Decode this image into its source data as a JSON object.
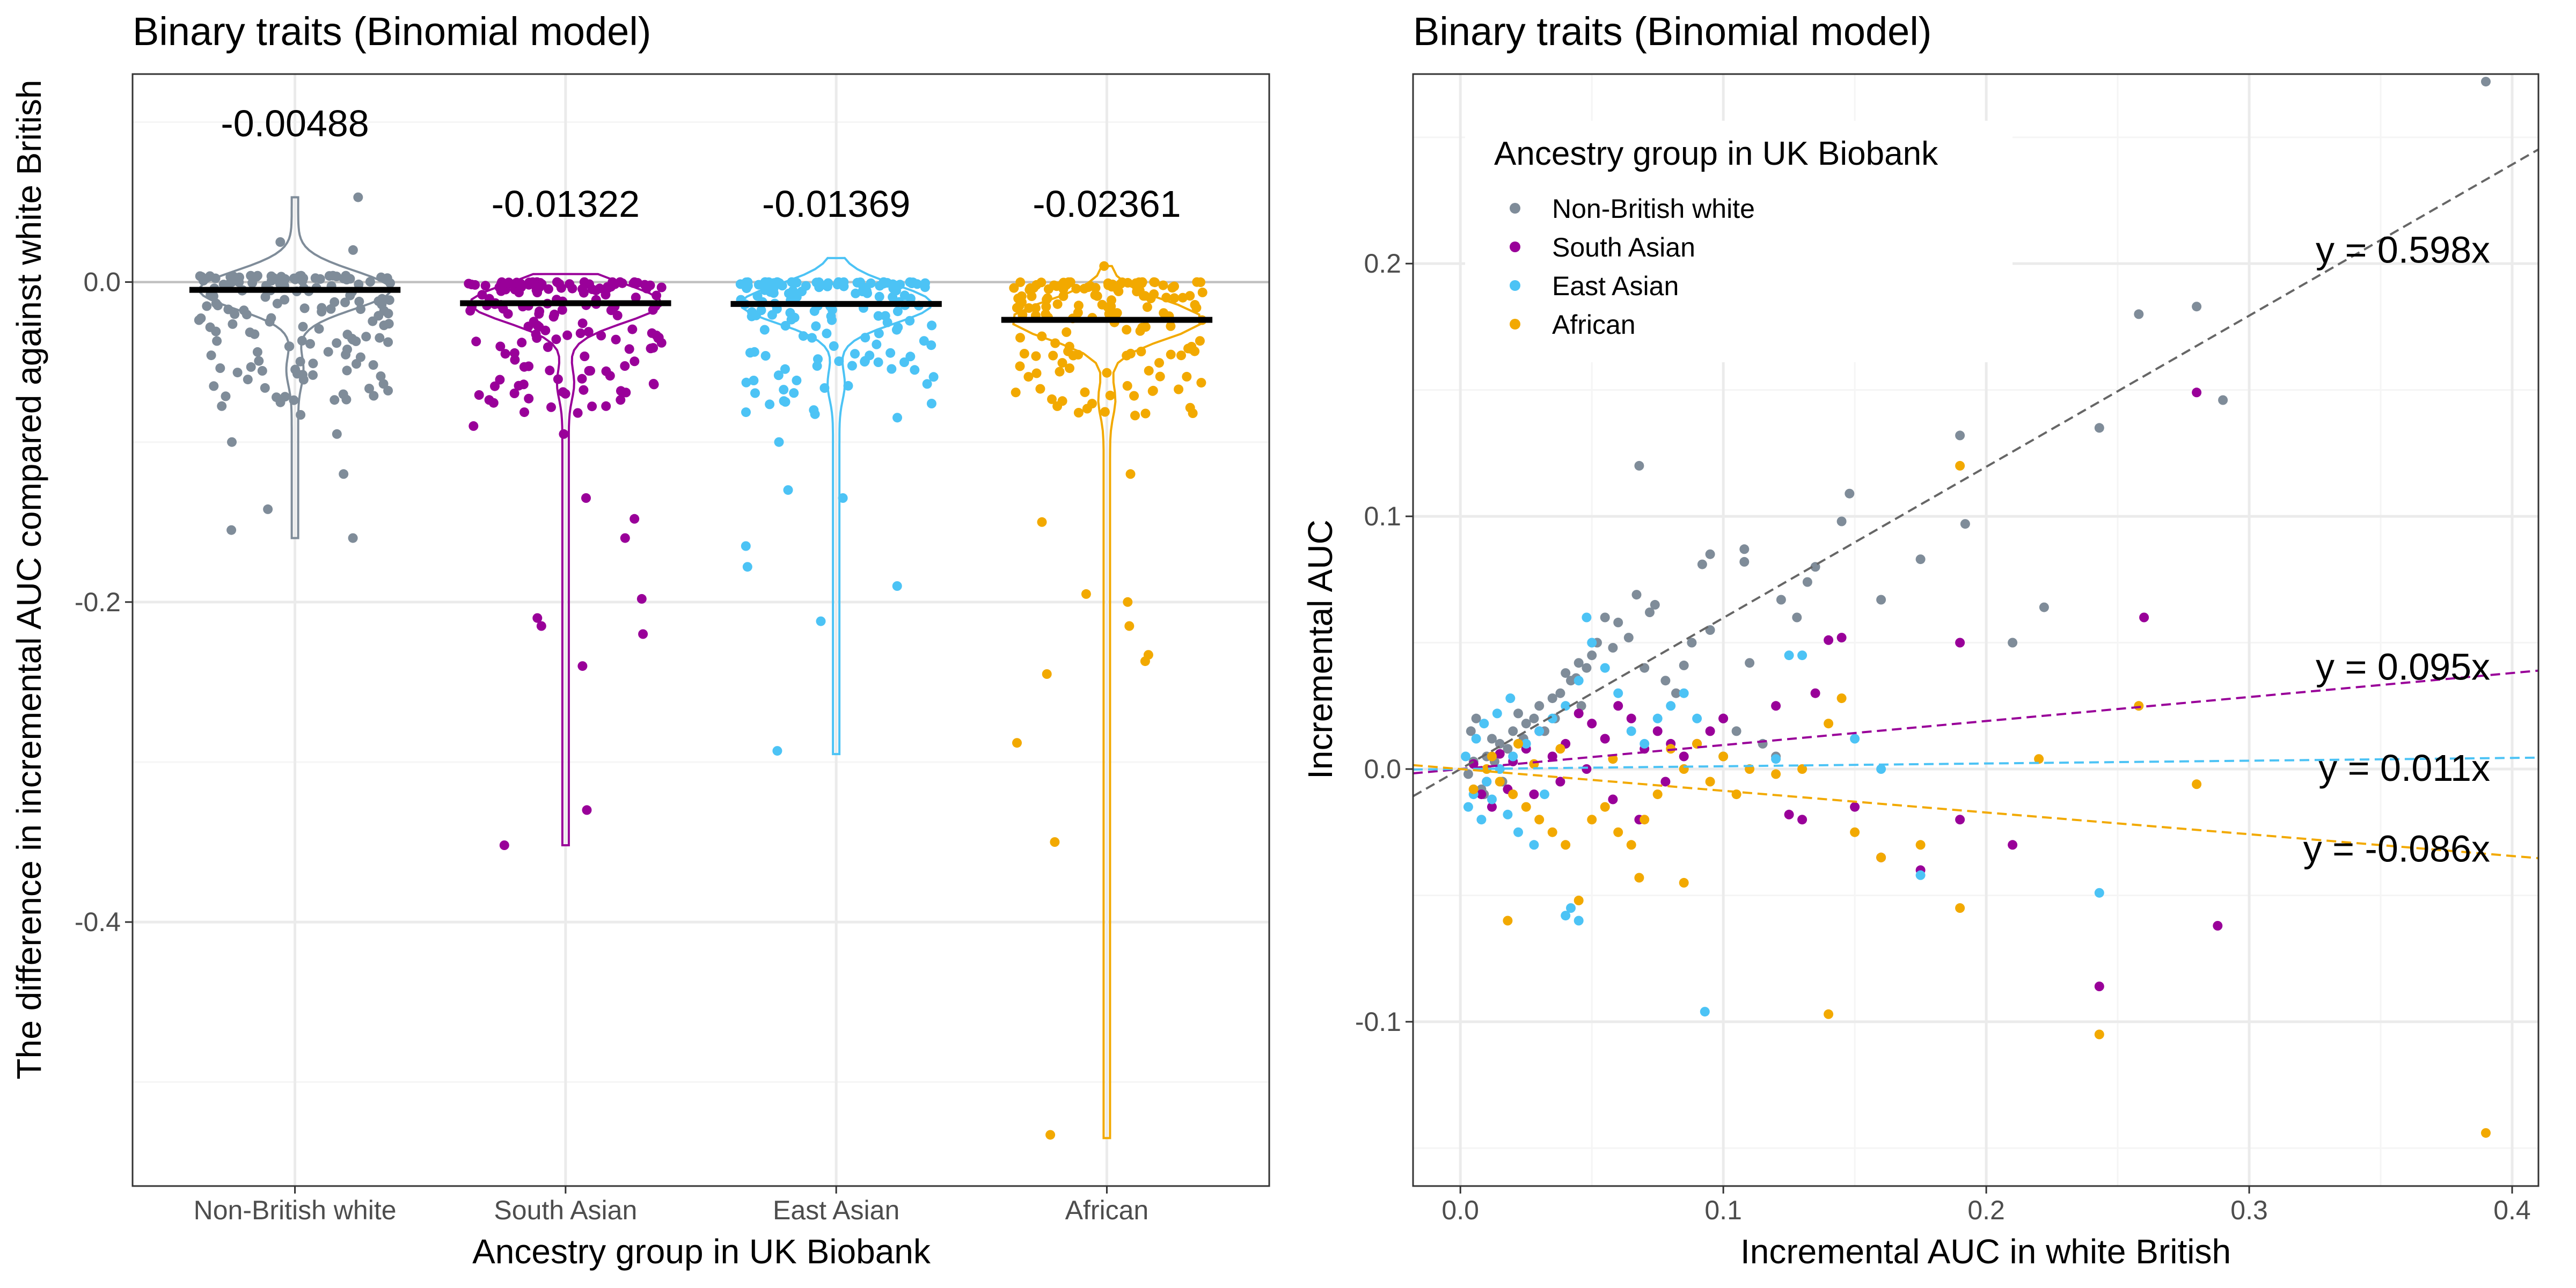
{
  "colors": {
    "Non-British white": "#7f8c99",
    "South Asian": "#990099",
    "East Asian": "#4cc3f5",
    "African": "#f2a900",
    "grid_major": "#ebebeb",
    "grid_minor": "#f5f5f5",
    "mean_bar": "#000000",
    "panel_border": "#333333",
    "reference_line": "#bfbfbf"
  },
  "chart_data": [
    {
      "type": "violin-jitter",
      "title": "Binary traits (Binomial model)",
      "xlabel": "Ancestry group in UK Biobank",
      "ylabel": "The difference in incremental AUC compared against white British",
      "categories": [
        "Non-British white",
        "South Asian",
        "East Asian",
        "African"
      ],
      "ylim": [
        -0.565,
        0.13
      ],
      "yticks": [
        0.0,
        -0.2,
        -0.4
      ],
      "ytick_labels": [
        "0.0",
        "-0.2",
        "-0.4"
      ],
      "reference_line_y": 0,
      "means": [
        -0.00488,
        -0.01322,
        -0.01369,
        -0.02361
      ],
      "mean_labels": [
        "-0.00488",
        "-0.01322",
        "-0.01369",
        "-0.02361"
      ],
      "groups": [
        {
          "name": "Non-British white",
          "min": -0.16,
          "max": 0.053,
          "outliers": [
            -0.155,
            -0.16,
            -0.142,
            -0.12,
            -0.095,
            -0.1,
            -0.083,
            -0.072,
            -0.065,
            0.053,
            0.025,
            0.02
          ]
        },
        {
          "name": "South Asian",
          "min": -0.352,
          "max": 0.005,
          "outliers": [
            -0.352,
            -0.33,
            -0.24,
            -0.22,
            -0.215,
            -0.21,
            -0.198,
            -0.16,
            -0.148,
            -0.135,
            -0.095,
            -0.09
          ]
        },
        {
          "name": "East Asian",
          "min": -0.295,
          "max": 0.015,
          "outliers": [
            -0.293,
            -0.212,
            -0.19,
            -0.178,
            -0.165,
            -0.135,
            -0.13,
            -0.1
          ]
        },
        {
          "name": "African",
          "min": -0.535,
          "max": 0.01,
          "outliers": [
            -0.533,
            -0.35,
            -0.288,
            -0.245,
            -0.237,
            -0.233,
            -0.215,
            -0.2,
            -0.195,
            -0.15,
            -0.12,
            0.01
          ]
        }
      ]
    },
    {
      "type": "scatter",
      "title": "Binary traits (Binomial model)",
      "xlabel": "Incremental AUC in white British",
      "ylabel": "Incremental AUC",
      "xlim": [
        -0.018,
        0.41
      ],
      "ylim": [
        -0.165,
        0.275
      ],
      "xticks": [
        0.0,
        0.1,
        0.2,
        0.3,
        0.4
      ],
      "xtick_labels": [
        "0.0",
        "0.1",
        "0.2",
        "0.3",
        "0.4"
      ],
      "yticks": [
        -0.1,
        0.0,
        0.1,
        0.2
      ],
      "ytick_labels": [
        "-0.1",
        "0.0",
        "0.1",
        "0.2"
      ],
      "legend_title": "Ancestry group in UK Biobank",
      "legend_position": "top-left",
      "series": [
        {
          "name": "Non-British white",
          "slope": 0.598,
          "fit_label": "y = 0.598x",
          "points": [
            [
              0.39,
              0.272
            ],
            [
              0.28,
              0.183
            ],
            [
              0.258,
              0.18
            ],
            [
              0.29,
              0.146
            ],
            [
              0.243,
              0.135
            ],
            [
              0.19,
              0.132
            ],
            [
              0.192,
              0.097
            ],
            [
              0.175,
              0.083
            ],
            [
              0.16,
              0.067
            ],
            [
              0.148,
              0.109
            ],
            [
              0.145,
              0.098
            ],
            [
              0.135,
              0.08
            ],
            [
              0.132,
              0.074
            ],
            [
              0.128,
              0.06
            ],
            [
              0.122,
              0.067
            ],
            [
              0.108,
              0.087
            ],
            [
              0.108,
              0.082
            ],
            [
              0.095,
              0.085
            ],
            [
              0.092,
              0.081
            ],
            [
              0.068,
              0.12
            ],
            [
              0.067,
              0.069
            ],
            [
              0.074,
              0.065
            ],
            [
              0.072,
              0.062
            ],
            [
              0.222,
              0.064
            ],
            [
              0.21,
              0.05
            ],
            [
              0.11,
              0.042
            ],
            [
              0.095,
              0.055
            ],
            [
              0.088,
              0.05
            ],
            [
              0.085,
              0.041
            ],
            [
              0.06,
              0.058
            ],
            [
              0.055,
              0.06
            ],
            [
              0.052,
              0.05
            ],
            [
              0.05,
              0.045
            ],
            [
              0.048,
              0.04
            ],
            [
              0.045,
              0.042
            ],
            [
              0.042,
              0.035
            ],
            [
              0.04,
              0.038
            ],
            [
              0.035,
              0.028
            ],
            [
              0.03,
              0.025
            ],
            [
              0.028,
              0.02
            ],
            [
              0.025,
              0.018
            ],
            [
              0.02,
              0.015
            ],
            [
              0.015,
              0.01
            ],
            [
              0.01,
              0.005
            ],
            [
              0.005,
              0.003
            ],
            [
              0.003,
              -0.002
            ],
            [
              0.008,
              -0.008
            ],
            [
              0.012,
              0.012
            ],
            [
              0.018,
              0.008
            ],
            [
              0.022,
              0.022
            ],
            [
              0.038,
              0.03
            ],
            [
              0.044,
              0.036
            ],
            [
              0.058,
              0.048
            ],
            [
              0.064,
              0.052
            ],
            [
              0.07,
              0.04
            ],
            [
              0.078,
              0.035
            ],
            [
              0.082,
              0.03
            ],
            [
              0.1,
              0.02
            ],
            [
              0.105,
              0.015
            ],
            [
              0.115,
              0.01
            ],
            [
              0.12,
              0.005
            ],
            [
              0.004,
              0.015
            ],
            [
              0.006,
              0.02
            ],
            [
              0.009,
              -0.01
            ],
            [
              0.013,
              0.003
            ],
            [
              0.016,
              -0.005
            ],
            [
              0.024,
              0.012
            ],
            [
              0.032,
              0.015
            ],
            [
              0.036,
              0.02
            ],
            [
              0.046,
              0.025
            ]
          ]
        },
        {
          "name": "South Asian",
          "slope": 0.095,
          "fit_label": "y = 0.095x",
          "points": [
            [
              0.28,
              0.149
            ],
            [
              0.26,
              0.06
            ],
            [
              0.19,
              0.05
            ],
            [
              0.145,
              0.052
            ],
            [
              0.14,
              0.051
            ],
            [
              0.288,
              -0.062
            ],
            [
              0.243,
              -0.086
            ],
            [
              0.21,
              -0.03
            ],
            [
              0.19,
              -0.02
            ],
            [
              0.175,
              -0.04
            ],
            [
              0.16,
              -0.035
            ],
            [
              0.15,
              -0.015
            ],
            [
              0.13,
              -0.02
            ],
            [
              0.125,
              -0.018
            ],
            [
              0.135,
              0.03
            ],
            [
              0.12,
              0.025
            ],
            [
              0.1,
              0.02
            ],
            [
              0.095,
              0.015
            ],
            [
              0.09,
              0.01
            ],
            [
              0.085,
              0.005
            ],
            [
              0.08,
              0.01
            ],
            [
              0.075,
              0.015
            ],
            [
              0.07,
              0.008
            ],
            [
              0.065,
              0.02
            ],
            [
              0.06,
              0.025
            ],
            [
              0.055,
              0.012
            ],
            [
              0.05,
              0.018
            ],
            [
              0.045,
              0.022
            ],
            [
              0.04,
              0.01
            ],
            [
              0.035,
              0.005
            ],
            [
              0.03,
              0.015
            ],
            [
              0.025,
              0.008
            ],
            [
              0.02,
              0.003
            ],
            [
              0.015,
              0.006
            ],
            [
              0.01,
              -0.005
            ],
            [
              0.005,
              0.002
            ],
            [
              0.008,
              -0.01
            ],
            [
              0.012,
              -0.015
            ],
            [
              0.018,
              -0.008
            ],
            [
              0.028,
              -0.01
            ],
            [
              0.038,
              -0.005
            ],
            [
              0.048,
              0.0
            ],
            [
              0.058,
              -0.012
            ],
            [
              0.068,
              -0.02
            ],
            [
              0.078,
              -0.005
            ]
          ]
        },
        {
          "name": "East Asian",
          "slope": 0.011,
          "fit_label": "y = 0.011x",
          "points": [
            [
              0.243,
              -0.049
            ],
            [
              0.175,
              -0.042
            ],
            [
              0.093,
              -0.096
            ],
            [
              0.045,
              -0.06
            ],
            [
              0.042,
              -0.055
            ],
            [
              0.04,
              -0.058
            ],
            [
              0.13,
              0.045
            ],
            [
              0.125,
              0.045
            ],
            [
              0.15,
              0.012
            ],
            [
              0.16,
              0.0
            ],
            [
              0.12,
              0.004
            ],
            [
              0.1,
              0.005
            ],
            [
              0.09,
              0.02
            ],
            [
              0.085,
              0.03
            ],
            [
              0.08,
              0.025
            ],
            [
              0.075,
              0.02
            ],
            [
              0.07,
              0.01
            ],
            [
              0.065,
              0.015
            ],
            [
              0.06,
              0.03
            ],
            [
              0.055,
              0.04
            ],
            [
              0.05,
              0.05
            ],
            [
              0.048,
              0.06
            ],
            [
              0.045,
              0.035
            ],
            [
              0.04,
              0.025
            ],
            [
              0.035,
              0.02
            ],
            [
              0.03,
              0.015
            ],
            [
              0.025,
              0.01
            ],
            [
              0.02,
              0.005
            ],
            [
              0.015,
              0.0
            ],
            [
              0.01,
              -0.005
            ],
            [
              0.005,
              -0.01
            ],
            [
              0.003,
              -0.015
            ],
            [
              0.008,
              -0.02
            ],
            [
              0.012,
              -0.012
            ],
            [
              0.018,
              -0.018
            ],
            [
              0.022,
              -0.025
            ],
            [
              0.028,
              -0.03
            ],
            [
              0.032,
              -0.01
            ],
            [
              0.002,
              0.005
            ],
            [
              0.006,
              0.012
            ],
            [
              0.009,
              0.018
            ],
            [
              0.014,
              0.022
            ],
            [
              0.019,
              0.028
            ]
          ]
        },
        {
          "name": "African",
          "slope": -0.086,
          "fit_label": "y = -0.086x",
          "points": [
            [
              0.39,
              -0.144
            ],
            [
              0.243,
              -0.105
            ],
            [
              0.14,
              -0.097
            ],
            [
              0.19,
              0.12
            ],
            [
              0.258,
              0.025
            ],
            [
              0.22,
              0.004
            ],
            [
              0.19,
              -0.055
            ],
            [
              0.28,
              -0.006
            ],
            [
              0.175,
              -0.03
            ],
            [
              0.16,
              -0.035
            ],
            [
              0.15,
              -0.025
            ],
            [
              0.145,
              0.028
            ],
            [
              0.14,
              0.018
            ],
            [
              0.13,
              0.0
            ],
            [
              0.12,
              -0.002
            ],
            [
              0.11,
              0.0
            ],
            [
              0.105,
              -0.01
            ],
            [
              0.1,
              0.005
            ],
            [
              0.095,
              -0.005
            ],
            [
              0.09,
              0.01
            ],
            [
              0.085,
              0.0
            ],
            [
              0.08,
              0.008
            ],
            [
              0.075,
              -0.01
            ],
            [
              0.07,
              -0.02
            ],
            [
              0.065,
              -0.03
            ],
            [
              0.06,
              -0.025
            ],
            [
              0.055,
              -0.015
            ],
            [
              0.05,
              -0.02
            ],
            [
              0.045,
              -0.052
            ],
            [
              0.04,
              -0.03
            ],
            [
              0.035,
              -0.025
            ],
            [
              0.03,
              -0.02
            ],
            [
              0.025,
              -0.015
            ],
            [
              0.02,
              -0.01
            ],
            [
              0.018,
              -0.06
            ],
            [
              0.015,
              -0.005
            ],
            [
              0.01,
              0.0
            ],
            [
              0.005,
              -0.008
            ],
            [
              0.085,
              -0.045
            ],
            [
              0.068,
              -0.043
            ],
            [
              0.012,
              0.005
            ],
            [
              0.022,
              0.01
            ],
            [
              0.028,
              0.002
            ],
            [
              0.038,
              0.008
            ],
            [
              0.058,
              0.004
            ]
          ]
        }
      ]
    }
  ]
}
